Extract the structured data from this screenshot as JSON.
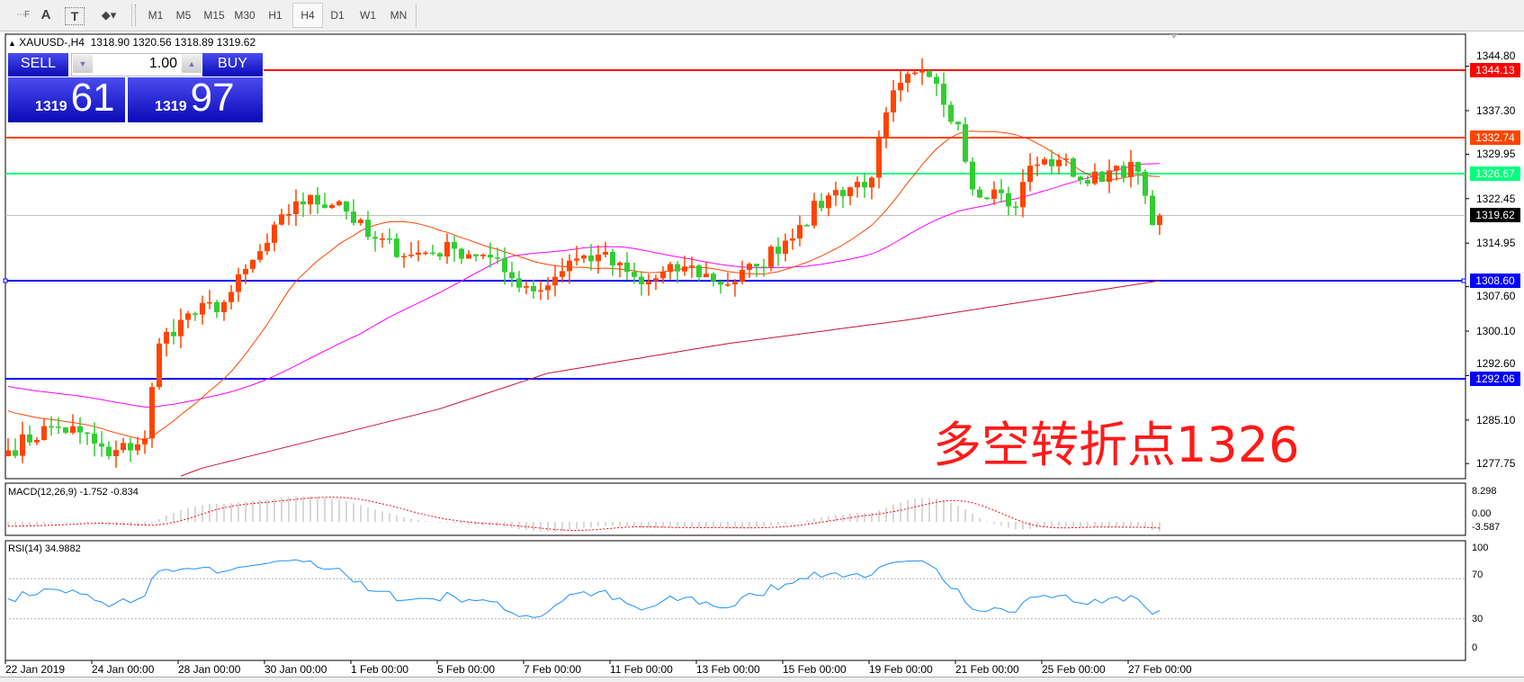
{
  "toolbar": {
    "tools": [
      {
        "label": "",
        "icon": "fibonacci-fan-icon"
      },
      {
        "label": "A",
        "icon": "text-icon"
      },
      {
        "label": "T",
        "icon": "text-label-icon"
      },
      {
        "label": "▾",
        "icon": "shapes-dropdown-icon"
      }
    ],
    "timeframes": [
      "M1",
      "M5",
      "M15",
      "M30",
      "H1",
      "H4",
      "D1",
      "W1",
      "MN"
    ],
    "active_timeframe": "H4"
  },
  "chart": {
    "symbol": "XAUUSD-,H4",
    "ohlc": "1318.90 1320.56 1318.89 1319.62",
    "bull_color": "#ff4500",
    "bear_color": "#32cd32"
  },
  "trade_panel": {
    "sell_label": "SELL",
    "buy_label": "BUY",
    "lot": "1.00",
    "sell_price_prefix": "1319",
    "sell_price_big": "61",
    "buy_price_prefix": "1319",
    "buy_price_big": "97"
  },
  "price_levels": [
    {
      "value": "1344.13",
      "color": "#ff0000"
    },
    {
      "value": "1332.74",
      "color": "#ff4500"
    },
    {
      "value": "1326.67",
      "color": "#00ff7f"
    },
    {
      "value": "1319.62",
      "color": "#000000"
    },
    {
      "value": "1308.60",
      "color": "#0000ff"
    },
    {
      "value": "1292.06",
      "color": "#0000ff"
    }
  ],
  "price_axis": [
    "1344.80",
    "1337.30",
    "1329.95",
    "1322.45",
    "1314.95",
    "1307.60",
    "1300.10",
    "1292.60",
    "1285.10",
    "1277.75"
  ],
  "date_axis": [
    "22 Jan 2019",
    "24 Jan 00:00",
    "28 Jan 00:00",
    "30 Jan 00:00",
    "1 Feb 00:00",
    "5 Feb 00:00",
    "7 Feb 00:00",
    "11 Feb 00:00",
    "13 Feb 00:00",
    "15 Feb 00:00",
    "19 Feb 00:00",
    "21 Feb 00:00",
    "25 Feb 00:00",
    "27 Feb 00:00"
  ],
  "annotation": "多空转折点1326",
  "macd": {
    "label": "MACD(12,26,9) -1.752 -0.834",
    "axis": [
      "8.298",
      "0.00",
      "-3.587"
    ]
  },
  "rsi": {
    "label": "RSI(14) 34.9882",
    "axis": [
      "100",
      "70",
      "30",
      "0"
    ]
  },
  "chart_data": {
    "type": "candlestick",
    "price_path": [
      [
        0,
        1280
      ],
      [
        6,
        1284
      ],
      [
        10,
        1283
      ],
      [
        14,
        1279
      ],
      [
        19,
        1282
      ],
      [
        21,
        1298
      ],
      [
        24,
        1302
      ],
      [
        30,
        1305
      ],
      [
        36,
        1315
      ],
      [
        40,
        1322
      ],
      [
        46,
        1322
      ],
      [
        50,
        1316
      ],
      [
        56,
        1313
      ],
      [
        62,
        1314
      ],
      [
        66,
        1313
      ],
      [
        70,
        1309
      ],
      [
        74,
        1307
      ],
      [
        78,
        1312
      ],
      [
        82,
        1313
      ],
      [
        88,
        1308
      ],
      [
        94,
        1311
      ],
      [
        100,
        1308
      ],
      [
        104,
        1311
      ],
      [
        110,
        1318
      ],
      [
        114,
        1323
      ],
      [
        120,
        1326
      ],
      [
        122,
        1337
      ],
      [
        124,
        1342
      ],
      [
        128,
        1343
      ],
      [
        132,
        1335
      ],
      [
        134,
        1324
      ],
      [
        137,
        1324
      ],
      [
        140,
        1321
      ],
      [
        142,
        1328
      ],
      [
        146,
        1329
      ],
      [
        150,
        1325
      ],
      [
        154,
        1328
      ],
      [
        157,
        1327
      ],
      [
        159,
        1318
      ],
      [
        160,
        1319.62
      ]
    ],
    "slow_ma_path": [
      [
        27,
        1277
      ],
      [
        60,
        1287
      ],
      [
        75,
        1293
      ],
      [
        100,
        1298
      ],
      [
        125,
        1302
      ],
      [
        160,
        1308.6
      ]
    ],
    "ma_colors": {
      "fast": "#ff4500",
      "mid": "#ff00ff",
      "slow": "#c8102e"
    }
  }
}
